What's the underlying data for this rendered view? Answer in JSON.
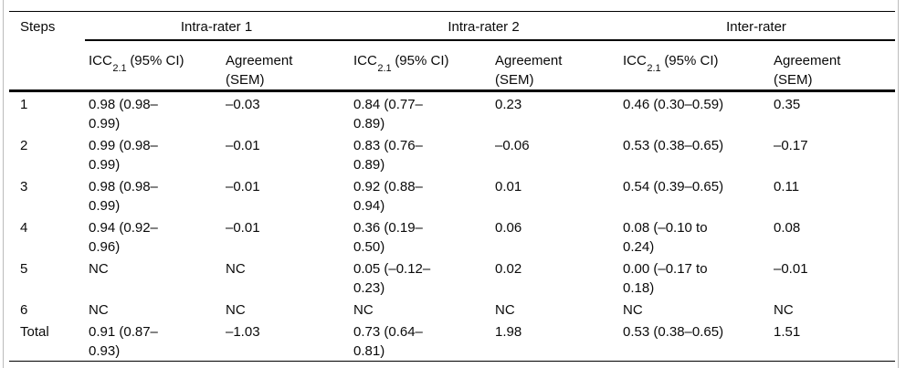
{
  "page": {
    "background": "#ffffff",
    "text_color": "#0a0a0a",
    "rule_color": "#000000",
    "scan_frame_color": "#bcbcbc"
  },
  "table": {
    "steps_header": "Steps",
    "groups": [
      {
        "label": "Intra-rater 1"
      },
      {
        "label": "Intra-rater 2"
      },
      {
        "label": "Inter-rater"
      }
    ],
    "icc_header": {
      "prefix": "ICC",
      "sub": "2.1",
      "suffix": "(95% CI)"
    },
    "agreement_header": "Agreement\n(SEM)",
    "rows": [
      {
        "step": "1",
        "cells": [
          "0.98 (0.98–\n0.99)",
          "–0.03",
          "0.84 (0.77–\n0.89)",
          "0.23",
          "0.46 (0.30–0.59)",
          "0.35"
        ]
      },
      {
        "step": "2",
        "cells": [
          "0.99 (0.98–\n0.99)",
          "–0.01",
          "0.83 (0.76–\n0.89)",
          "–0.06",
          "0.53 (0.38–0.65)",
          "–0.17"
        ]
      },
      {
        "step": "3",
        "cells": [
          "0.98 (0.98–\n0.99)",
          "–0.01",
          "0.92 (0.88–\n0.94)",
          "0.01",
          "0.54 (0.39–0.65)",
          "0.11"
        ]
      },
      {
        "step": "4",
        "cells": [
          "0.94 (0.92–\n0.96)",
          "–0.01",
          "0.36 (0.19–\n0.50)",
          "0.06",
          "0.08 (–0.10 to\n0.24)",
          "0.08"
        ]
      },
      {
        "step": "5",
        "cells": [
          "NC",
          "NC",
          "0.05 (–0.12–\n0.23)",
          "0.02",
          "0.00 (–0.17 to\n0.18)",
          "–0.01"
        ]
      },
      {
        "step": "6",
        "cells": [
          "NC",
          "NC",
          "NC",
          "NC",
          "NC",
          "NC"
        ]
      },
      {
        "step": "Total",
        "cells": [
          "0.91 (0.87–\n0.93)",
          "–1.03",
          "0.73 (0.64–\n0.81)",
          "1.98",
          "0.53 (0.38–0.65)",
          "1.51"
        ]
      }
    ]
  }
}
